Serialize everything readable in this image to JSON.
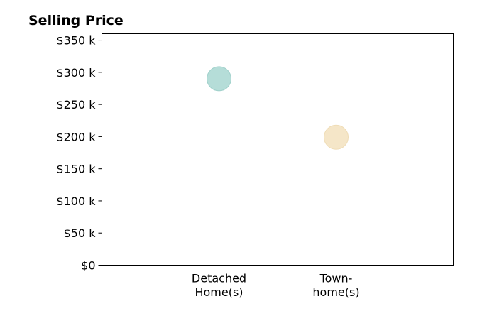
{
  "chart_data": {
    "type": "scatter",
    "title": "Selling Price",
    "xlabel": "",
    "ylabel": "",
    "categories": [
      [
        "Detached",
        "Home(s)"
      ],
      [
        "Town-",
        "home(s)"
      ]
    ],
    "xlim": [
      -1,
      2
    ],
    "ylim": [
      0,
      360000
    ],
    "yticks": [
      0,
      50000,
      100000,
      150000,
      200000,
      250000,
      300000,
      350000
    ],
    "ytick_labels": [
      "$0",
      "$50 k",
      "$100 k",
      "$150 k",
      "$200 k",
      "$250 k",
      "$300 k",
      "$350 k"
    ],
    "points": [
      {
        "x": 0,
        "y": 290000,
        "color": "#b5ddd8"
      },
      {
        "x": 1,
        "y": 199000,
        "color": "#f5e6c8"
      }
    ],
    "grid": false,
    "legend": "none",
    "colors": {
      "axis": "#000000",
      "point_1_edge": "#9fd0ca",
      "point_2_edge": "#efdcb5"
    }
  }
}
